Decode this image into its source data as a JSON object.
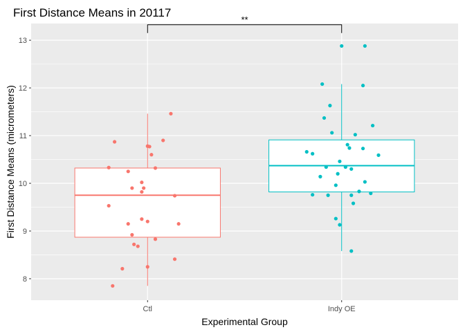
{
  "chart_data": {
    "type": "box",
    "title": "First Distance Means in 20117",
    "xlabel": "Experimental Group",
    "ylabel": "First Distance Means (micrometers)",
    "ylim": [
      7.55,
      13.35
    ],
    "yticks": [
      8,
      9,
      10,
      11,
      12,
      13
    ],
    "grid": true,
    "legend": "none",
    "significance": {
      "label": "**",
      "between": [
        "Ctl",
        "Indy OE"
      ],
      "y": 13.15
    },
    "groups": [
      {
        "name": "Ctl",
        "color": "#F8766D",
        "box": {
          "lower_whisker": 7.85,
          "q1": 8.87,
          "median": 9.75,
          "q3": 10.32,
          "upper_whisker": 11.46
        },
        "points": [
          {
            "jitter": 0.12,
            "y": 11.46
          },
          {
            "jitter": -0.17,
            "y": 10.87
          },
          {
            "jitter": 0.08,
            "y": 10.9
          },
          {
            "jitter": 0.0,
            "y": 10.78
          },
          {
            "jitter": 0.01,
            "y": 10.77
          },
          {
            "jitter": 0.02,
            "y": 10.6
          },
          {
            "jitter": -0.2,
            "y": 10.33
          },
          {
            "jitter": 0.04,
            "y": 10.32
          },
          {
            "jitter": -0.1,
            "y": 10.25
          },
          {
            "jitter": -0.03,
            "y": 10.02
          },
          {
            "jitter": -0.08,
            "y": 9.9
          },
          {
            "jitter": -0.02,
            "y": 9.9
          },
          {
            "jitter": -0.03,
            "y": 9.82
          },
          {
            "jitter": 0.14,
            "y": 9.74
          },
          {
            "jitter": -0.2,
            "y": 9.53
          },
          {
            "jitter": -0.03,
            "y": 9.25
          },
          {
            "jitter": 0.0,
            "y": 9.2
          },
          {
            "jitter": -0.1,
            "y": 9.15
          },
          {
            "jitter": 0.16,
            "y": 9.15
          },
          {
            "jitter": -0.08,
            "y": 8.92
          },
          {
            "jitter": 0.04,
            "y": 8.83
          },
          {
            "jitter": -0.07,
            "y": 8.72
          },
          {
            "jitter": -0.05,
            "y": 8.68
          },
          {
            "jitter": 0.14,
            "y": 8.41
          },
          {
            "jitter": 0.0,
            "y": 8.25
          },
          {
            "jitter": -0.13,
            "y": 8.21
          },
          {
            "jitter": -0.18,
            "y": 7.85
          }
        ]
      },
      {
        "name": "Indy OE",
        "color": "#00BFC4",
        "box": {
          "lower_whisker": 8.58,
          "q1": 9.82,
          "median": 10.37,
          "q3": 10.91,
          "upper_whisker": 12.08
        },
        "points": [
          {
            "jitter": 0.0,
            "y": 12.88
          },
          {
            "jitter": 0.12,
            "y": 12.88
          },
          {
            "jitter": -0.1,
            "y": 12.08
          },
          {
            "jitter": 0.11,
            "y": 12.05
          },
          {
            "jitter": -0.06,
            "y": 11.63
          },
          {
            "jitter": -0.09,
            "y": 11.37
          },
          {
            "jitter": 0.16,
            "y": 11.21
          },
          {
            "jitter": -0.05,
            "y": 11.06
          },
          {
            "jitter": 0.07,
            "y": 11.02
          },
          {
            "jitter": 0.03,
            "y": 10.81
          },
          {
            "jitter": 0.04,
            "y": 10.74
          },
          {
            "jitter": 0.11,
            "y": 10.73
          },
          {
            "jitter": -0.18,
            "y": 10.66
          },
          {
            "jitter": -0.15,
            "y": 10.62
          },
          {
            "jitter": 0.19,
            "y": 10.59
          },
          {
            "jitter": -0.01,
            "y": 10.46
          },
          {
            "jitter": -0.08,
            "y": 10.34
          },
          {
            "jitter": 0.02,
            "y": 10.34
          },
          {
            "jitter": 0.05,
            "y": 10.3
          },
          {
            "jitter": -0.02,
            "y": 10.2
          },
          {
            "jitter": -0.11,
            "y": 10.14
          },
          {
            "jitter": 0.12,
            "y": 10.03
          },
          {
            "jitter": -0.03,
            "y": 9.96
          },
          {
            "jitter": 0.09,
            "y": 9.83
          },
          {
            "jitter": 0.15,
            "y": 9.79
          },
          {
            "jitter": -0.15,
            "y": 9.76
          },
          {
            "jitter": -0.07,
            "y": 9.75
          },
          {
            "jitter": 0.05,
            "y": 9.75
          },
          {
            "jitter": 0.06,
            "y": 9.58
          },
          {
            "jitter": -0.03,
            "y": 9.26
          },
          {
            "jitter": -0.01,
            "y": 9.13
          },
          {
            "jitter": 0.05,
            "y": 8.58
          }
        ]
      }
    ]
  }
}
